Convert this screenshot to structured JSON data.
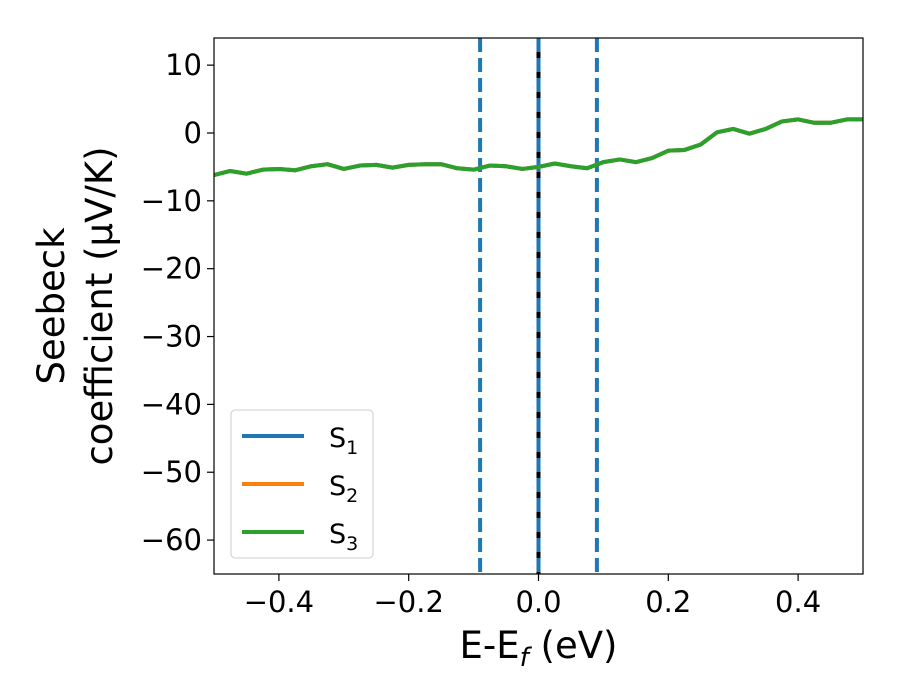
{
  "chart_data": {
    "type": "line",
    "title": "",
    "xlabel": "E-E",
    "xlabel_sub": "f",
    "xlabel_suffix": " (eV)",
    "ylabel_line1": "Seebeck",
    "ylabel_line2": "coefficient  (μV/K)",
    "xlim": [
      -0.5,
      0.5
    ],
    "ylim": [
      -65,
      14
    ],
    "xticks": [
      -0.4,
      -0.2,
      0.0,
      0.2,
      0.4
    ],
    "xtick_labels": [
      "−0.4",
      "−0.2",
      "0.0",
      "0.2",
      "0.4"
    ],
    "yticks": [
      10,
      0,
      -10,
      -20,
      -30,
      -40,
      -50,
      -60
    ],
    "ytick_labels": [
      "10",
      "0",
      "−10",
      "−20",
      "−30",
      "−40",
      "−50",
      "−60"
    ],
    "grid": false,
    "legend_position": "lower-left",
    "vertical_lines": [
      {
        "x": -0.09,
        "style": "dashed",
        "color": "#1f77b4"
      },
      {
        "x": 0.0,
        "style": "solid",
        "color": "#000000"
      },
      {
        "x": 0.0,
        "style": "dashed",
        "color": "#1f77b4"
      },
      {
        "x": 0.09,
        "style": "dashed",
        "color": "#1f77b4"
      }
    ],
    "x": [
      -0.5,
      -0.475,
      -0.45,
      -0.425,
      -0.4,
      -0.375,
      -0.35,
      -0.325,
      -0.3,
      -0.275,
      -0.25,
      -0.225,
      -0.2,
      -0.175,
      -0.15,
      -0.125,
      -0.1,
      -0.075,
      -0.05,
      -0.025,
      0.0,
      0.025,
      0.05,
      0.075,
      0.1,
      0.125,
      0.15,
      0.175,
      0.2,
      0.225,
      0.25,
      0.275,
      0.3,
      0.325,
      0.35,
      0.375,
      0.4,
      0.425,
      0.45,
      0.475,
      0.5
    ],
    "series": [
      {
        "name": "S",
        "sub": "1",
        "color": "#1f77b4",
        "values": [
          -6.2,
          -5.6,
          -6.0,
          -5.4,
          -5.3,
          -5.5,
          -4.9,
          -4.6,
          -5.3,
          -4.8,
          -4.7,
          -5.1,
          -4.7,
          -4.6,
          -4.6,
          -5.2,
          -5.4,
          -4.8,
          -4.9,
          -5.3,
          -5.0,
          -4.5,
          -4.9,
          -5.2,
          -4.3,
          -3.9,
          -4.3,
          -3.7,
          -2.6,
          -2.5,
          -1.7,
          0.1,
          0.6,
          -0.1,
          0.6,
          1.7,
          2.0,
          1.5,
          1.5,
          2.0,
          2.0
        ]
      },
      {
        "name": "S",
        "sub": "2",
        "color": "#ff7f0e",
        "values": [
          -6.2,
          -5.6,
          -6.0,
          -5.4,
          -5.3,
          -5.5,
          -4.9,
          -4.6,
          -5.3,
          -4.8,
          -4.7,
          -5.1,
          -4.7,
          -4.6,
          -4.6,
          -5.2,
          -5.4,
          -4.8,
          -4.9,
          -5.3,
          -5.0,
          -4.5,
          -4.9,
          -5.2,
          -4.3,
          -3.9,
          -4.3,
          -3.7,
          -2.6,
          -2.5,
          -1.7,
          0.1,
          0.6,
          -0.1,
          0.6,
          1.7,
          2.0,
          1.5,
          1.5,
          2.0,
          2.0
        ]
      },
      {
        "name": "S",
        "sub": "3",
        "color": "#2ca02c",
        "values": [
          -6.2,
          -5.6,
          -6.0,
          -5.4,
          -5.3,
          -5.5,
          -4.9,
          -4.6,
          -5.3,
          -4.8,
          -4.7,
          -5.1,
          -4.7,
          -4.6,
          -4.6,
          -5.2,
          -5.4,
          -4.8,
          -4.9,
          -5.3,
          -5.0,
          -4.5,
          -4.9,
          -5.2,
          -4.3,
          -3.9,
          -4.3,
          -3.7,
          -2.6,
          -2.5,
          -1.7,
          0.1,
          0.6,
          -0.1,
          0.6,
          1.7,
          2.0,
          1.5,
          1.5,
          2.0,
          2.0
        ]
      }
    ]
  }
}
